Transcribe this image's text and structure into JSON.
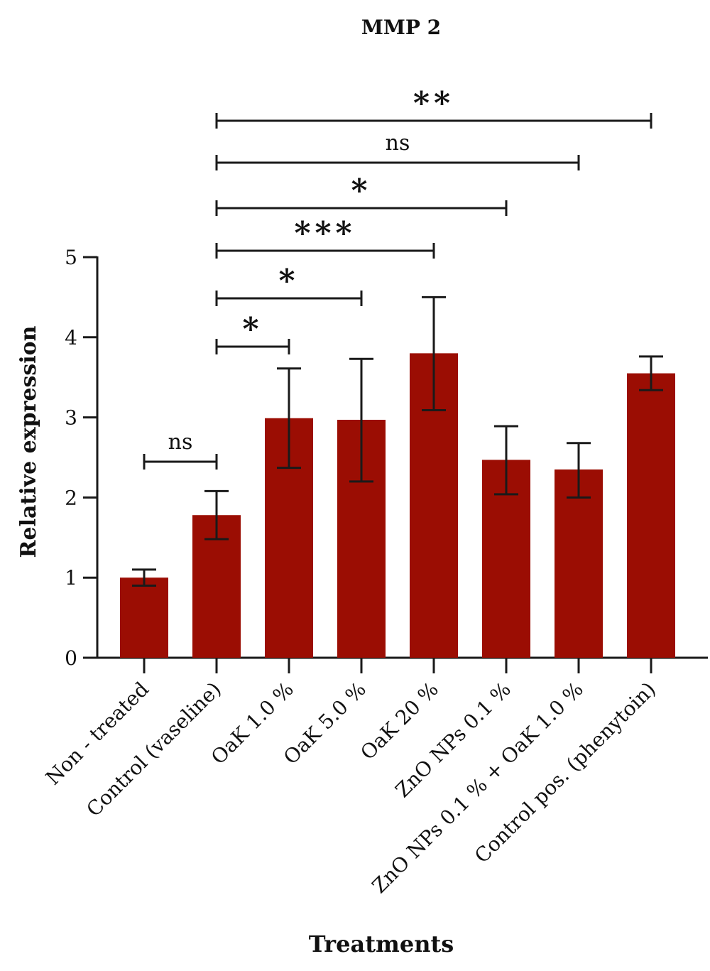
{
  "chart_data": {
    "type": "bar",
    "title": "MMP 2",
    "xlabel": "Treatments",
    "ylabel": "Relative expression",
    "ylim": [
      0,
      5
    ],
    "yticks": [
      "0",
      "1",
      "2",
      "3",
      "4",
      "5"
    ],
    "grid": false,
    "categories": [
      "Non - treated",
      "Control (vaseline)",
      "OaK 1.0 %",
      "OaK 5.0 %",
      "OaK 20 %",
      "ZnO NPs 0.1 %",
      "ZnO NPs 0.1 % + OaK 1.0 %",
      "Control pos. (phenytoin)"
    ],
    "values": [
      1.0,
      1.78,
      2.99,
      2.97,
      3.8,
      2.47,
      2.35,
      3.55
    ],
    "error_low": [
      0.9,
      1.48,
      2.37,
      2.2,
      3.09,
      2.04,
      2.0,
      3.34
    ],
    "error_high": [
      1.1,
      2.08,
      3.61,
      3.73,
      4.5,
      2.89,
      2.68,
      3.76
    ],
    "bar_color": "#9b0d03",
    "significance": [
      {
        "from": 0,
        "to": 1,
        "label": "ns"
      },
      {
        "from": 1,
        "to": 2,
        "label": "*"
      },
      {
        "from": 1,
        "to": 3,
        "label": "*"
      },
      {
        "from": 1,
        "to": 4,
        "label": "***"
      },
      {
        "from": 1,
        "to": 5,
        "label": "*"
      },
      {
        "from": 1,
        "to": 6,
        "label": "ns"
      },
      {
        "from": 1,
        "to": 7,
        "label": "**"
      }
    ]
  }
}
